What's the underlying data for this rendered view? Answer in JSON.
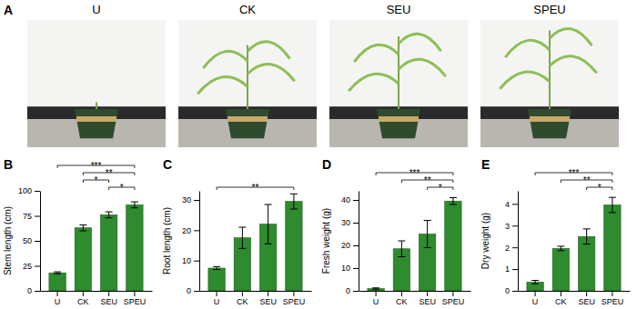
{
  "photos": {
    "panel": "A",
    "labels": [
      "U",
      "CK",
      "SEU",
      "SPEU"
    ]
  },
  "chart_data": [
    {
      "type": "bar",
      "panel": "B",
      "ylabel": "Stem length (cm)",
      "categories": [
        "U",
        "CK",
        "SEU",
        "SPEU"
      ],
      "values": [
        18,
        63,
        76,
        86
      ],
      "errors": [
        1,
        3,
        3,
        3
      ],
      "color": "#2e8b2e",
      "ylim": [
        0,
        100
      ],
      "yticks": [
        0,
        25,
        50,
        75,
        100
      ],
      "annotations": [
        {
          "from": "U",
          "to": "SPEU",
          "text": "***"
        },
        {
          "from": "CK",
          "to": "SPEU",
          "text": "**"
        },
        {
          "from": "CK",
          "to": "SEU",
          "text": "*"
        },
        {
          "from": "SEU",
          "to": "SPEU",
          "text": "*"
        }
      ]
    },
    {
      "type": "bar",
      "panel": "C",
      "ylabel": "Root length (cm)",
      "categories": [
        "U",
        "CK",
        "SEU",
        "SPEU"
      ],
      "values": [
        7.5,
        17.5,
        22,
        29.5
      ],
      "errors": [
        0.5,
        3.5,
        6.5,
        2.5
      ],
      "color": "#2e8b2e",
      "ylim": [
        0,
        33
      ],
      "yticks": [
        0,
        10,
        20,
        30
      ],
      "annotations": [
        {
          "from": "U",
          "to": "SPEU",
          "text": "**"
        }
      ]
    },
    {
      "type": "bar",
      "panel": "D",
      "ylabel": "Fresh weight (g)",
      "categories": [
        "U",
        "CK",
        "SEU",
        "SPEU"
      ],
      "values": [
        1,
        18.5,
        25,
        39.5
      ],
      "errors": [
        0.3,
        3.5,
        6,
        1.5
      ],
      "color": "#2e8b2e",
      "ylim": [
        0,
        44
      ],
      "yticks": [
        0,
        10,
        20,
        30,
        40
      ],
      "annotations": [
        {
          "from": "U",
          "to": "SPEU",
          "text": "***"
        },
        {
          "from": "CK",
          "to": "SPEU",
          "text": "**"
        },
        {
          "from": "SEU",
          "to": "SPEU",
          "text": "*"
        }
      ]
    },
    {
      "type": "bar",
      "panel": "E",
      "ylabel": "Dry weight (g)",
      "categories": [
        "U",
        "CK",
        "SEU",
        "SPEU"
      ],
      "values": [
        0.4,
        1.95,
        2.5,
        3.95
      ],
      "errors": [
        0.08,
        0.1,
        0.35,
        0.35
      ],
      "color": "#2e8b2e",
      "ylim": [
        0,
        4.6
      ],
      "yticks": [
        0,
        1,
        2,
        3,
        4
      ],
      "annotations": [
        {
          "from": "U",
          "to": "SPEU",
          "text": "***"
        },
        {
          "from": "CK",
          "to": "SPEU",
          "text": "**"
        },
        {
          "from": "SEU",
          "to": "SPEU",
          "text": "*"
        }
      ]
    }
  ]
}
